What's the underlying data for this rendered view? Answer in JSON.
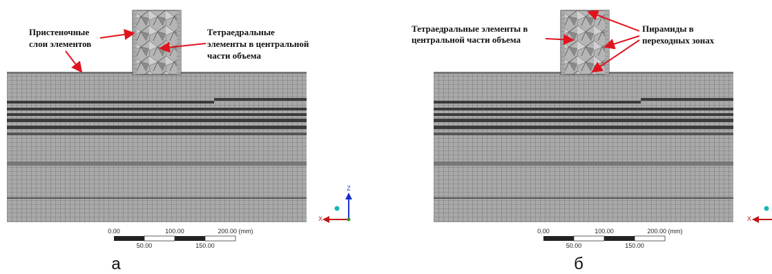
{
  "panels": [
    {
      "label": "а",
      "annotations": [
        {
          "lines": [
            "Пристеночные",
            "слои элементов"
          ]
        },
        {
          "lines": [
            "Тетраедральные",
            "элементы в центральной",
            "части объема"
          ]
        }
      ],
      "scale": {
        "top": [
          "0.00",
          "100.00",
          "200.00 (mm)"
        ],
        "bottom": [
          "50.00",
          "150.00"
        ]
      },
      "axes": [
        "Z",
        "X"
      ]
    },
    {
      "label": "б",
      "annotations": [
        {
          "lines": [
            "Тетраедральные элементы в",
            "центральной части объема"
          ]
        },
        {
          "lines": [
            "Пирамиды в",
            "переходных зонах"
          ]
        }
      ],
      "scale": {
        "top": [
          "0.00",
          "100.00",
          "200.00 (mm)"
        ],
        "bottom": [
          "50.00",
          "150.00"
        ]
      },
      "axes": [
        "X"
      ]
    }
  ]
}
